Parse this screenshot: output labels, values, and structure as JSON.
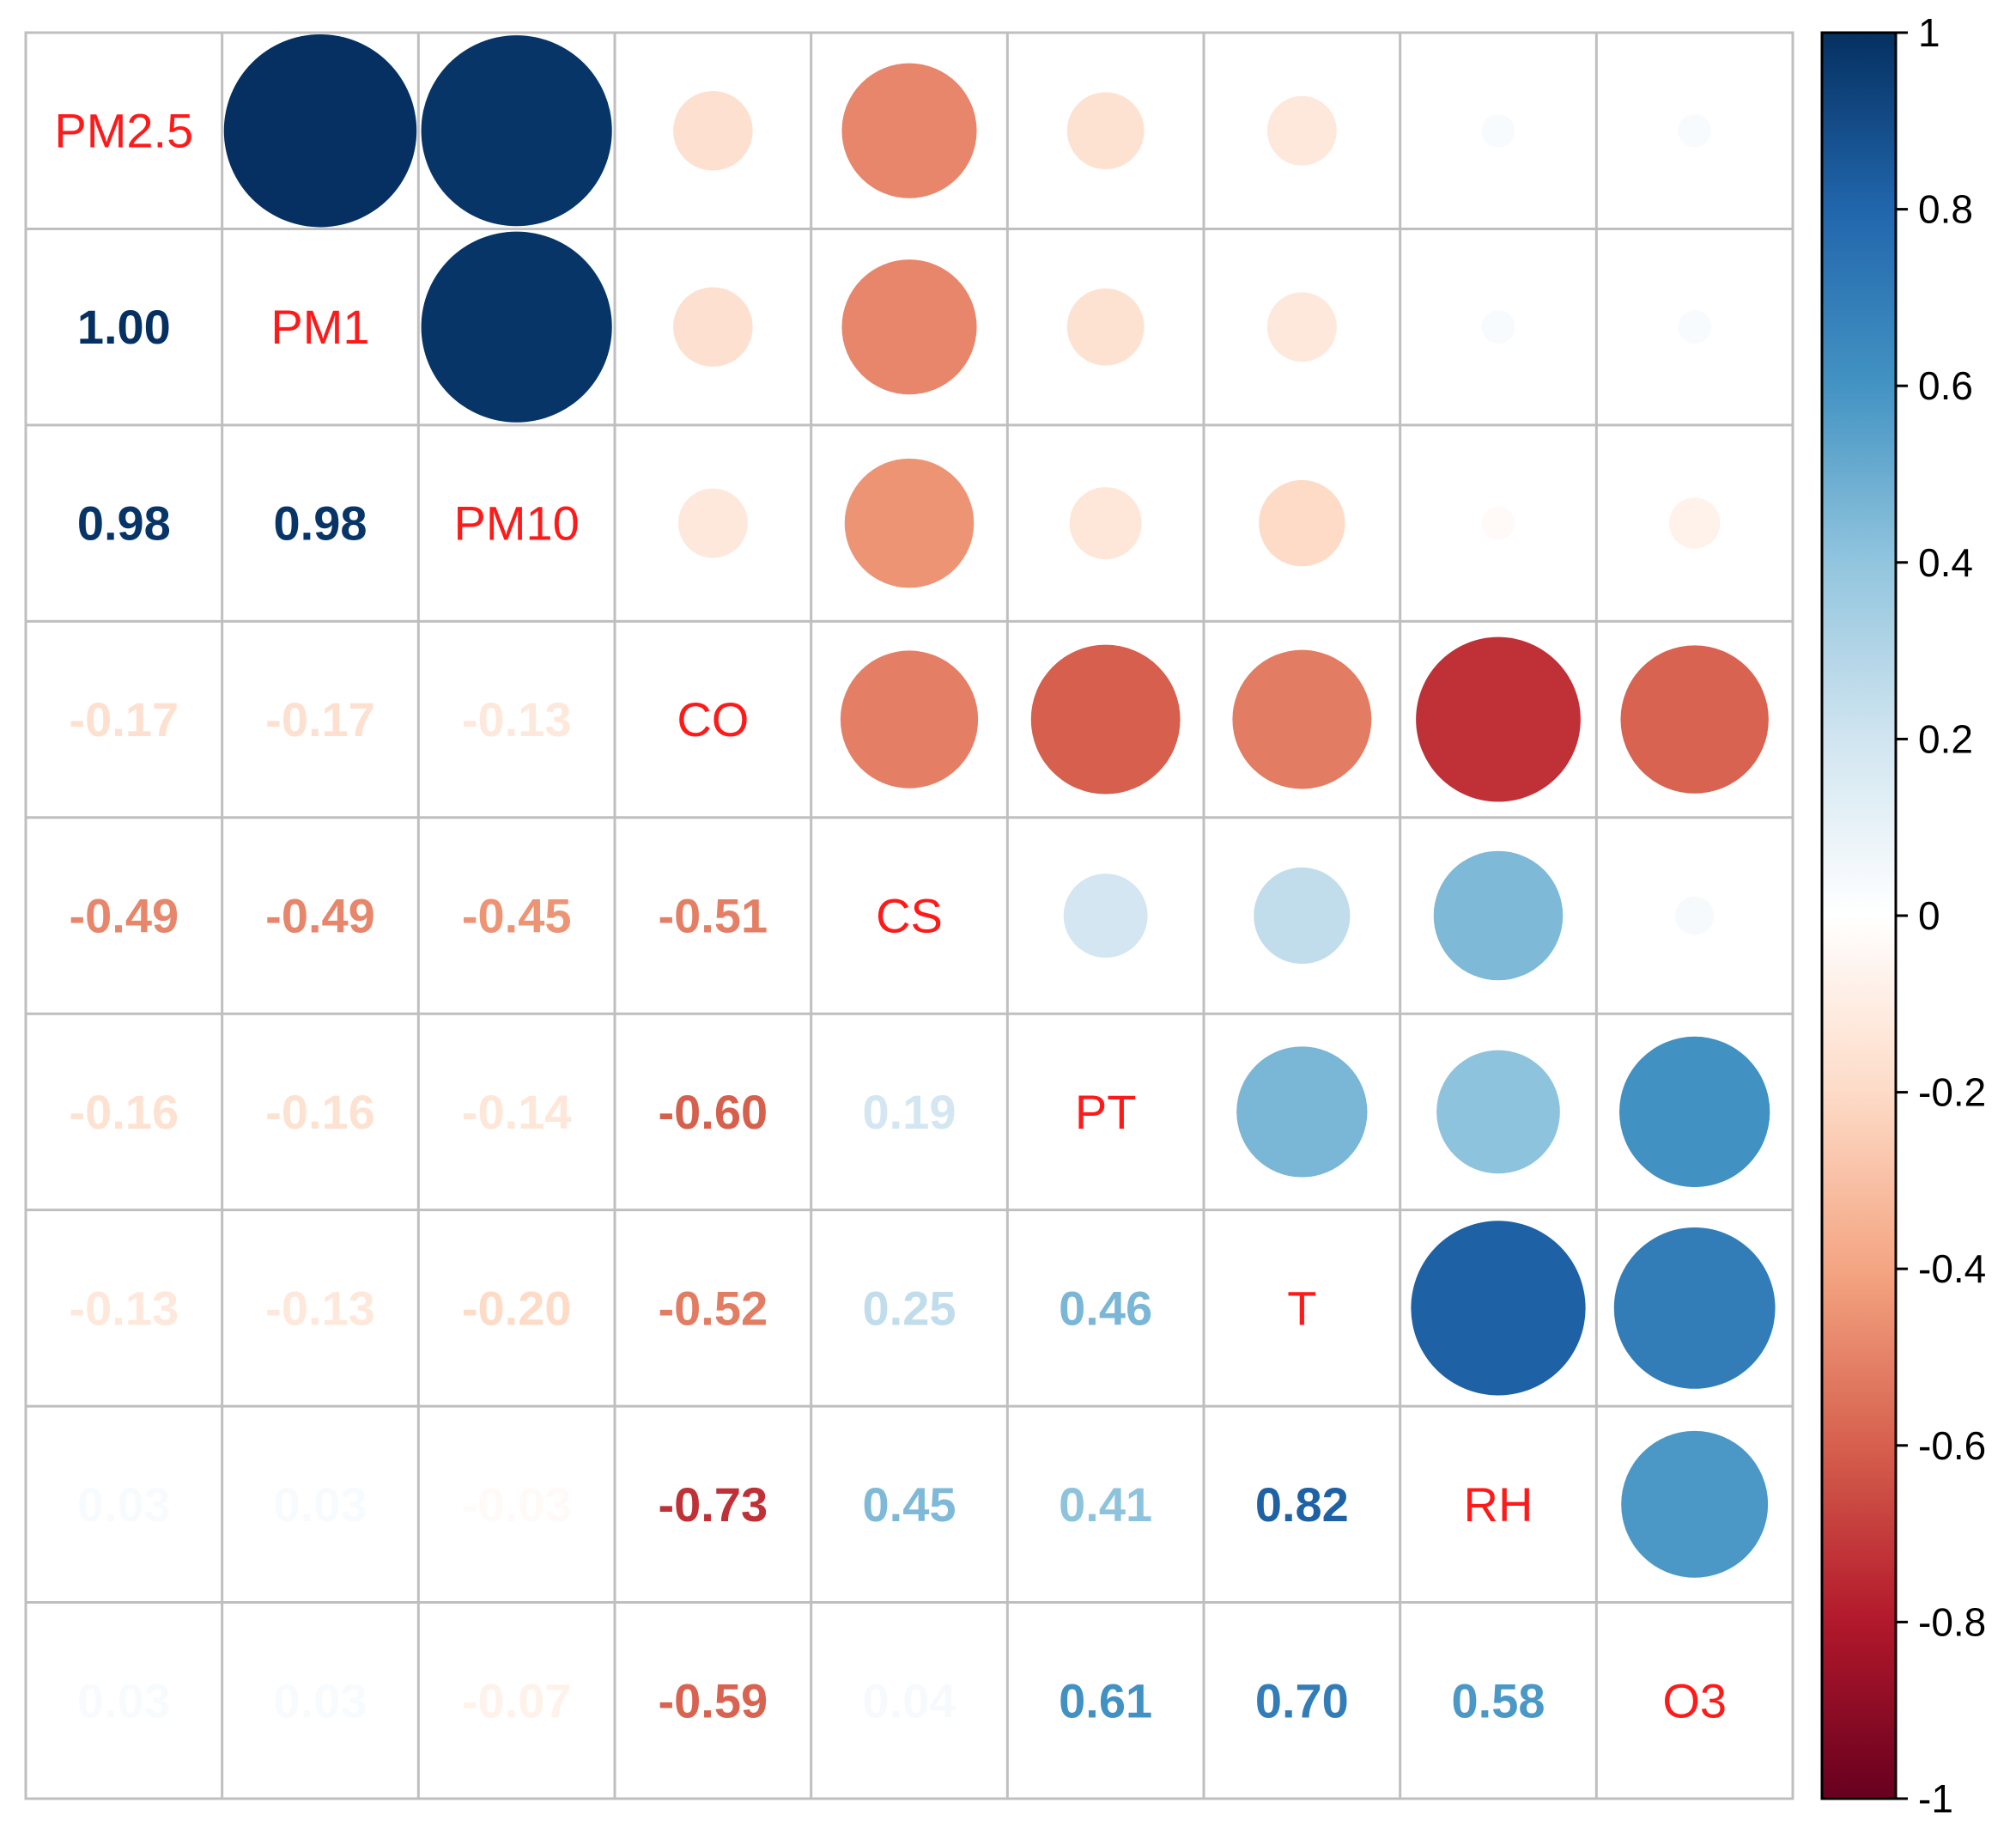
{
  "chart_data": {
    "type": "heatmap",
    "subtype": "correlation-matrix-mixed",
    "upper": "circle",
    "lower": "number",
    "variables": [
      "PM2.5",
      "PM1",
      "PM10",
      "CO",
      "CS",
      "PT",
      "T",
      "RH",
      "O3"
    ],
    "matrix": [
      [
        1.0,
        1.0,
        0.98,
        -0.17,
        -0.49,
        -0.16,
        -0.13,
        0.03,
        0.03
      ],
      [
        1.0,
        1.0,
        0.98,
        -0.17,
        -0.49,
        -0.16,
        -0.13,
        0.03,
        0.03
      ],
      [
        0.98,
        0.98,
        1.0,
        -0.13,
        -0.45,
        -0.14,
        -0.2,
        -0.03,
        -0.07
      ],
      [
        -0.17,
        -0.17,
        -0.13,
        1.0,
        -0.51,
        -0.6,
        -0.52,
        -0.73,
        -0.59
      ],
      [
        -0.49,
        -0.49,
        -0.45,
        -0.51,
        1.0,
        0.19,
        0.25,
        0.45,
        0.04
      ],
      [
        -0.16,
        -0.16,
        -0.14,
        -0.6,
        0.19,
        1.0,
        0.46,
        0.41,
        0.61
      ],
      [
        -0.13,
        -0.13,
        -0.2,
        -0.52,
        0.25,
        0.46,
        1.0,
        0.82,
        0.7
      ],
      [
        0.03,
        0.03,
        -0.03,
        -0.73,
        0.45,
        0.41,
        0.82,
        1.0,
        0.58
      ],
      [
        0.03,
        0.03,
        -0.07,
        -0.59,
        0.04,
        0.61,
        0.7,
        0.58,
        1.0
      ]
    ],
    "lower_labels": [
      [
        "1.00"
      ],
      [
        "0.98",
        "0.98"
      ],
      [
        "-0.17",
        "-0.17",
        "-0.13"
      ],
      [
        "-0.49",
        "-0.49",
        "-0.45",
        "-0.51"
      ],
      [
        "-0.16",
        "-0.16",
        "-0.14",
        "-0.60",
        "0.19"
      ],
      [
        "-0.13",
        "-0.13",
        "-0.20",
        "-0.52",
        "0.25",
        "0.46"
      ],
      [
        "0.03",
        "0.03",
        "-0.03",
        "-0.73",
        "0.45",
        "0.41",
        "0.82"
      ],
      [
        "0.03",
        "0.03",
        "-0.07",
        "-0.59",
        "0.04",
        "0.61",
        "0.70",
        "0.58"
      ]
    ],
    "colorbar": {
      "range": [
        -1,
        1
      ],
      "ticks": [
        "1",
        "0.8",
        "0.6",
        "0.4",
        "0.2",
        "0",
        "-0.2",
        "-0.4",
        "-0.6",
        "-0.8",
        "-1"
      ]
    },
    "colors": {
      "diagonal_label": "#ff1a1a",
      "grid": "#bfbfbf",
      "palette": [
        "#67001f",
        "#b2182b",
        "#d6604d",
        "#f4a582",
        "#fddbc7",
        "#ffffff",
        "#d1e5f0",
        "#92c5de",
        "#4393c3",
        "#2166ac",
        "#053061"
      ]
    }
  }
}
